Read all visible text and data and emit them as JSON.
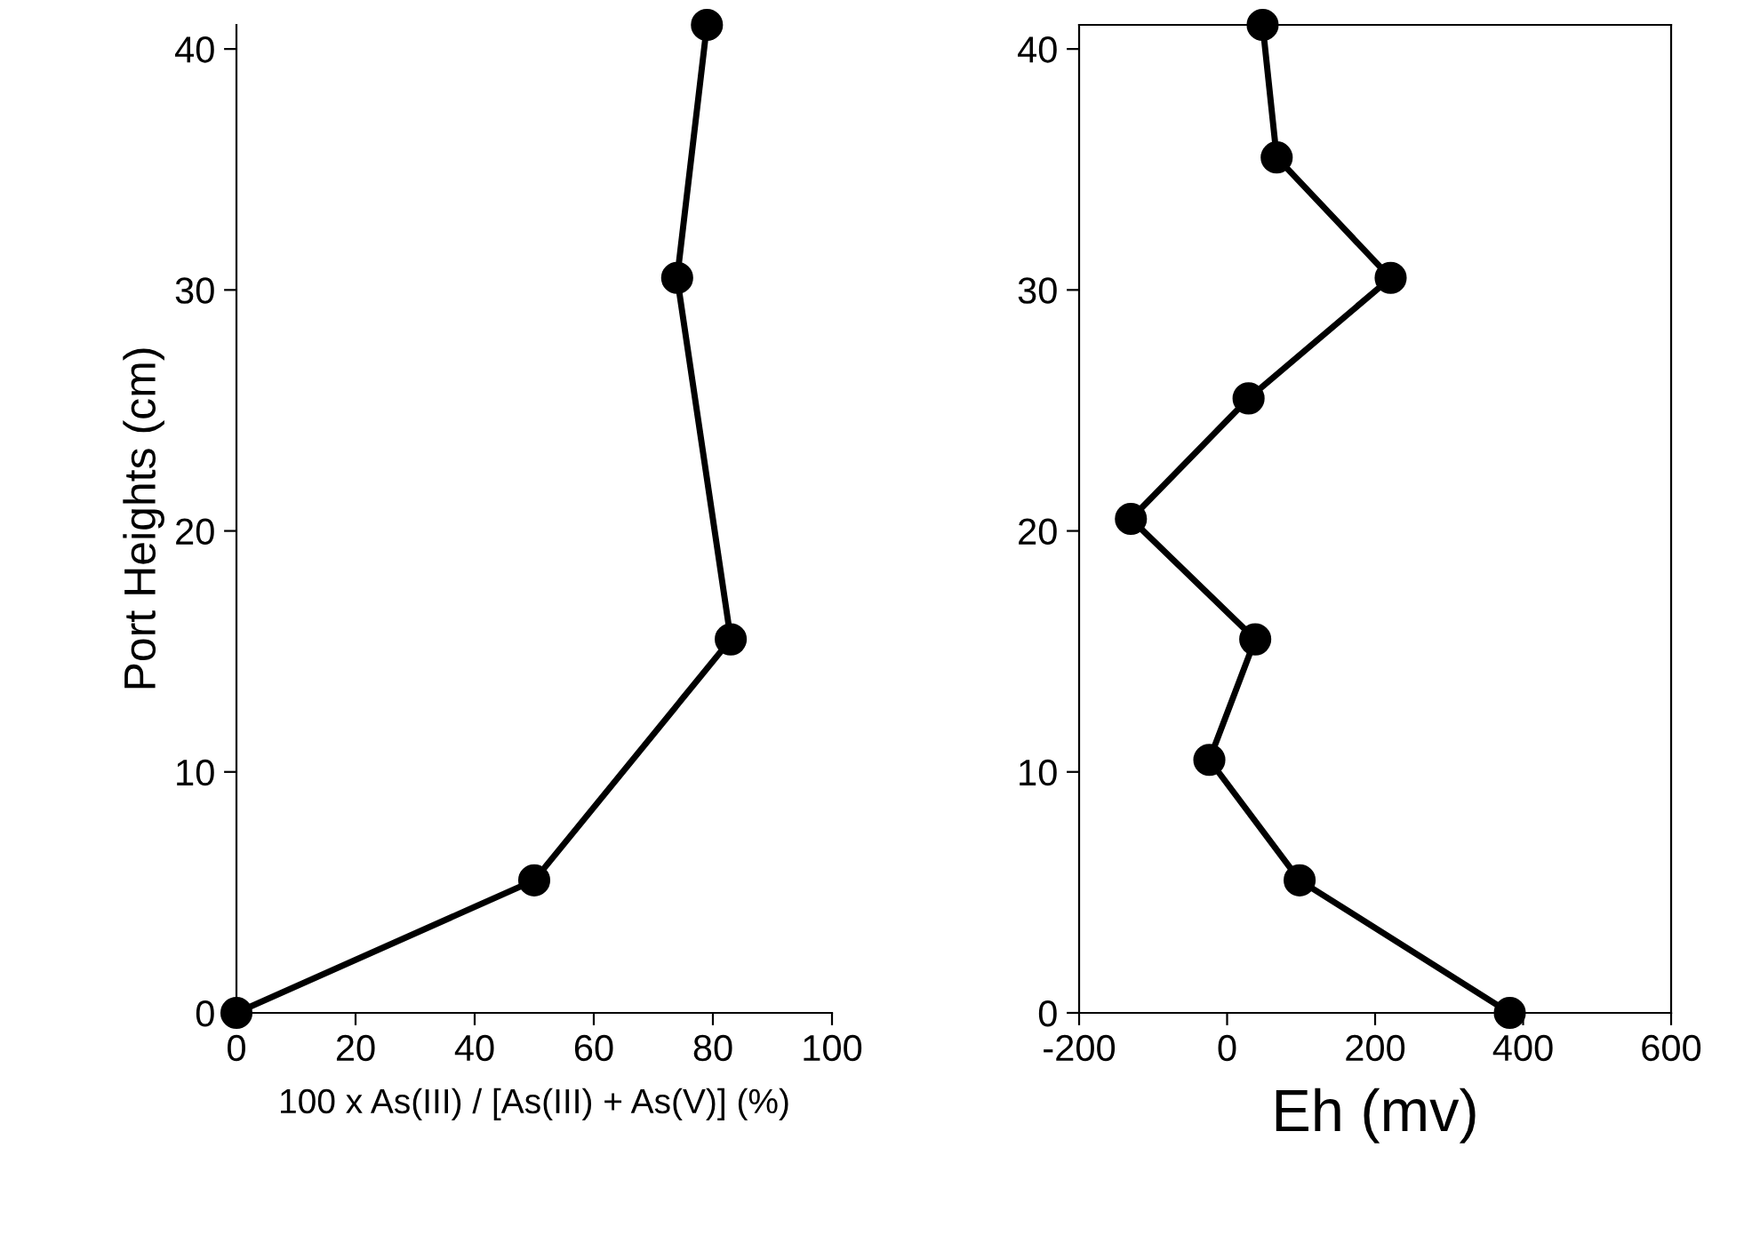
{
  "chart_data": [
    {
      "type": "line",
      "ylabel": "Port Heights (cm)",
      "xlabel": "100 x As(III) / [As(III) + As(V)] (%)",
      "xlim": [
        0,
        100
      ],
      "xticks": [
        0,
        20,
        40,
        60,
        80,
        100
      ],
      "ylim": [
        0,
        41
      ],
      "yticks": [
        0,
        10,
        20,
        30,
        40
      ],
      "marker": "circle",
      "line_style": "solid",
      "grid": false,
      "legend": false,
      "series": [
        {
          "color": "#000000",
          "x": [
            0,
            50,
            83,
            74,
            79
          ],
          "values": [
            0,
            5.5,
            15.5,
            30.5,
            41
          ]
        }
      ]
    },
    {
      "type": "line",
      "xlabel": "Eh (mv)",
      "xlim": [
        -200,
        600
      ],
      "xticks": [
        -200,
        0,
        200,
        400,
        600
      ],
      "ylim": [
        0,
        41
      ],
      "yticks": [
        0,
        10,
        20,
        30,
        40
      ],
      "marker": "circle",
      "line_style": "solid",
      "grid": false,
      "legend": false,
      "series": [
        {
          "color": "#000000",
          "x": [
            382,
            98,
            -24,
            38,
            -130,
            29,
            221,
            67,
            48
          ],
          "values": [
            0,
            5.5,
            10.5,
            15.5,
            20.5,
            25.5,
            30.5,
            35.5,
            41
          ]
        }
      ]
    }
  ]
}
